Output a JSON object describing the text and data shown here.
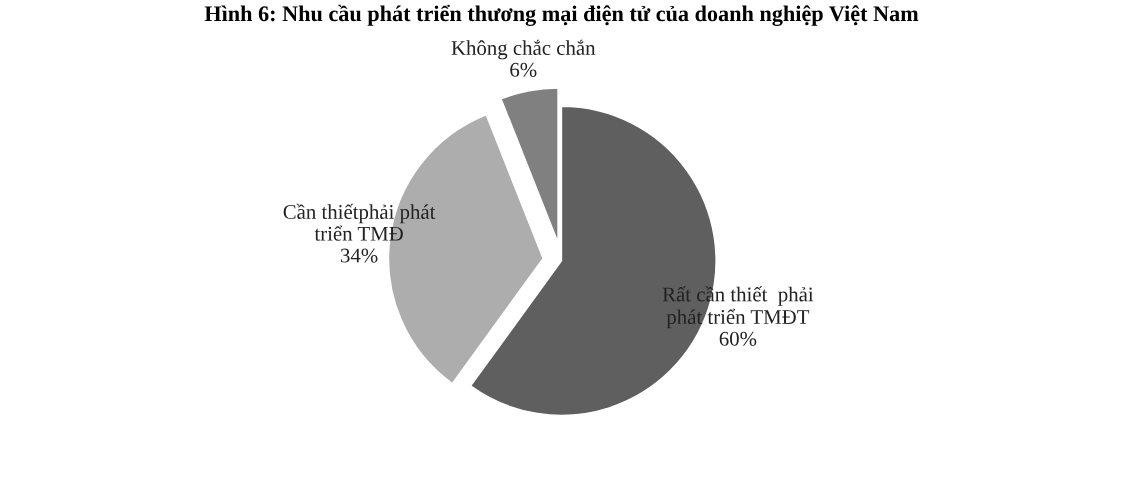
{
  "chart_data": {
    "type": "pie",
    "title": "Hình 6: Nhu cầu phát triển thương mại điện tử của doanh nghiệp Việt Nam",
    "categories": [
      "Rất cần thiết  phải\nphát triển TMĐT",
      "Cần thiếtphải phát\ntriển TMĐ",
      "Không chắc chắn"
    ],
    "values": [
      60,
      34,
      6
    ],
    "value_labels": [
      "60%",
      "34%",
      "6%"
    ],
    "colors": [
      "#5f5f5f",
      "#adadad",
      "#808080"
    ]
  }
}
